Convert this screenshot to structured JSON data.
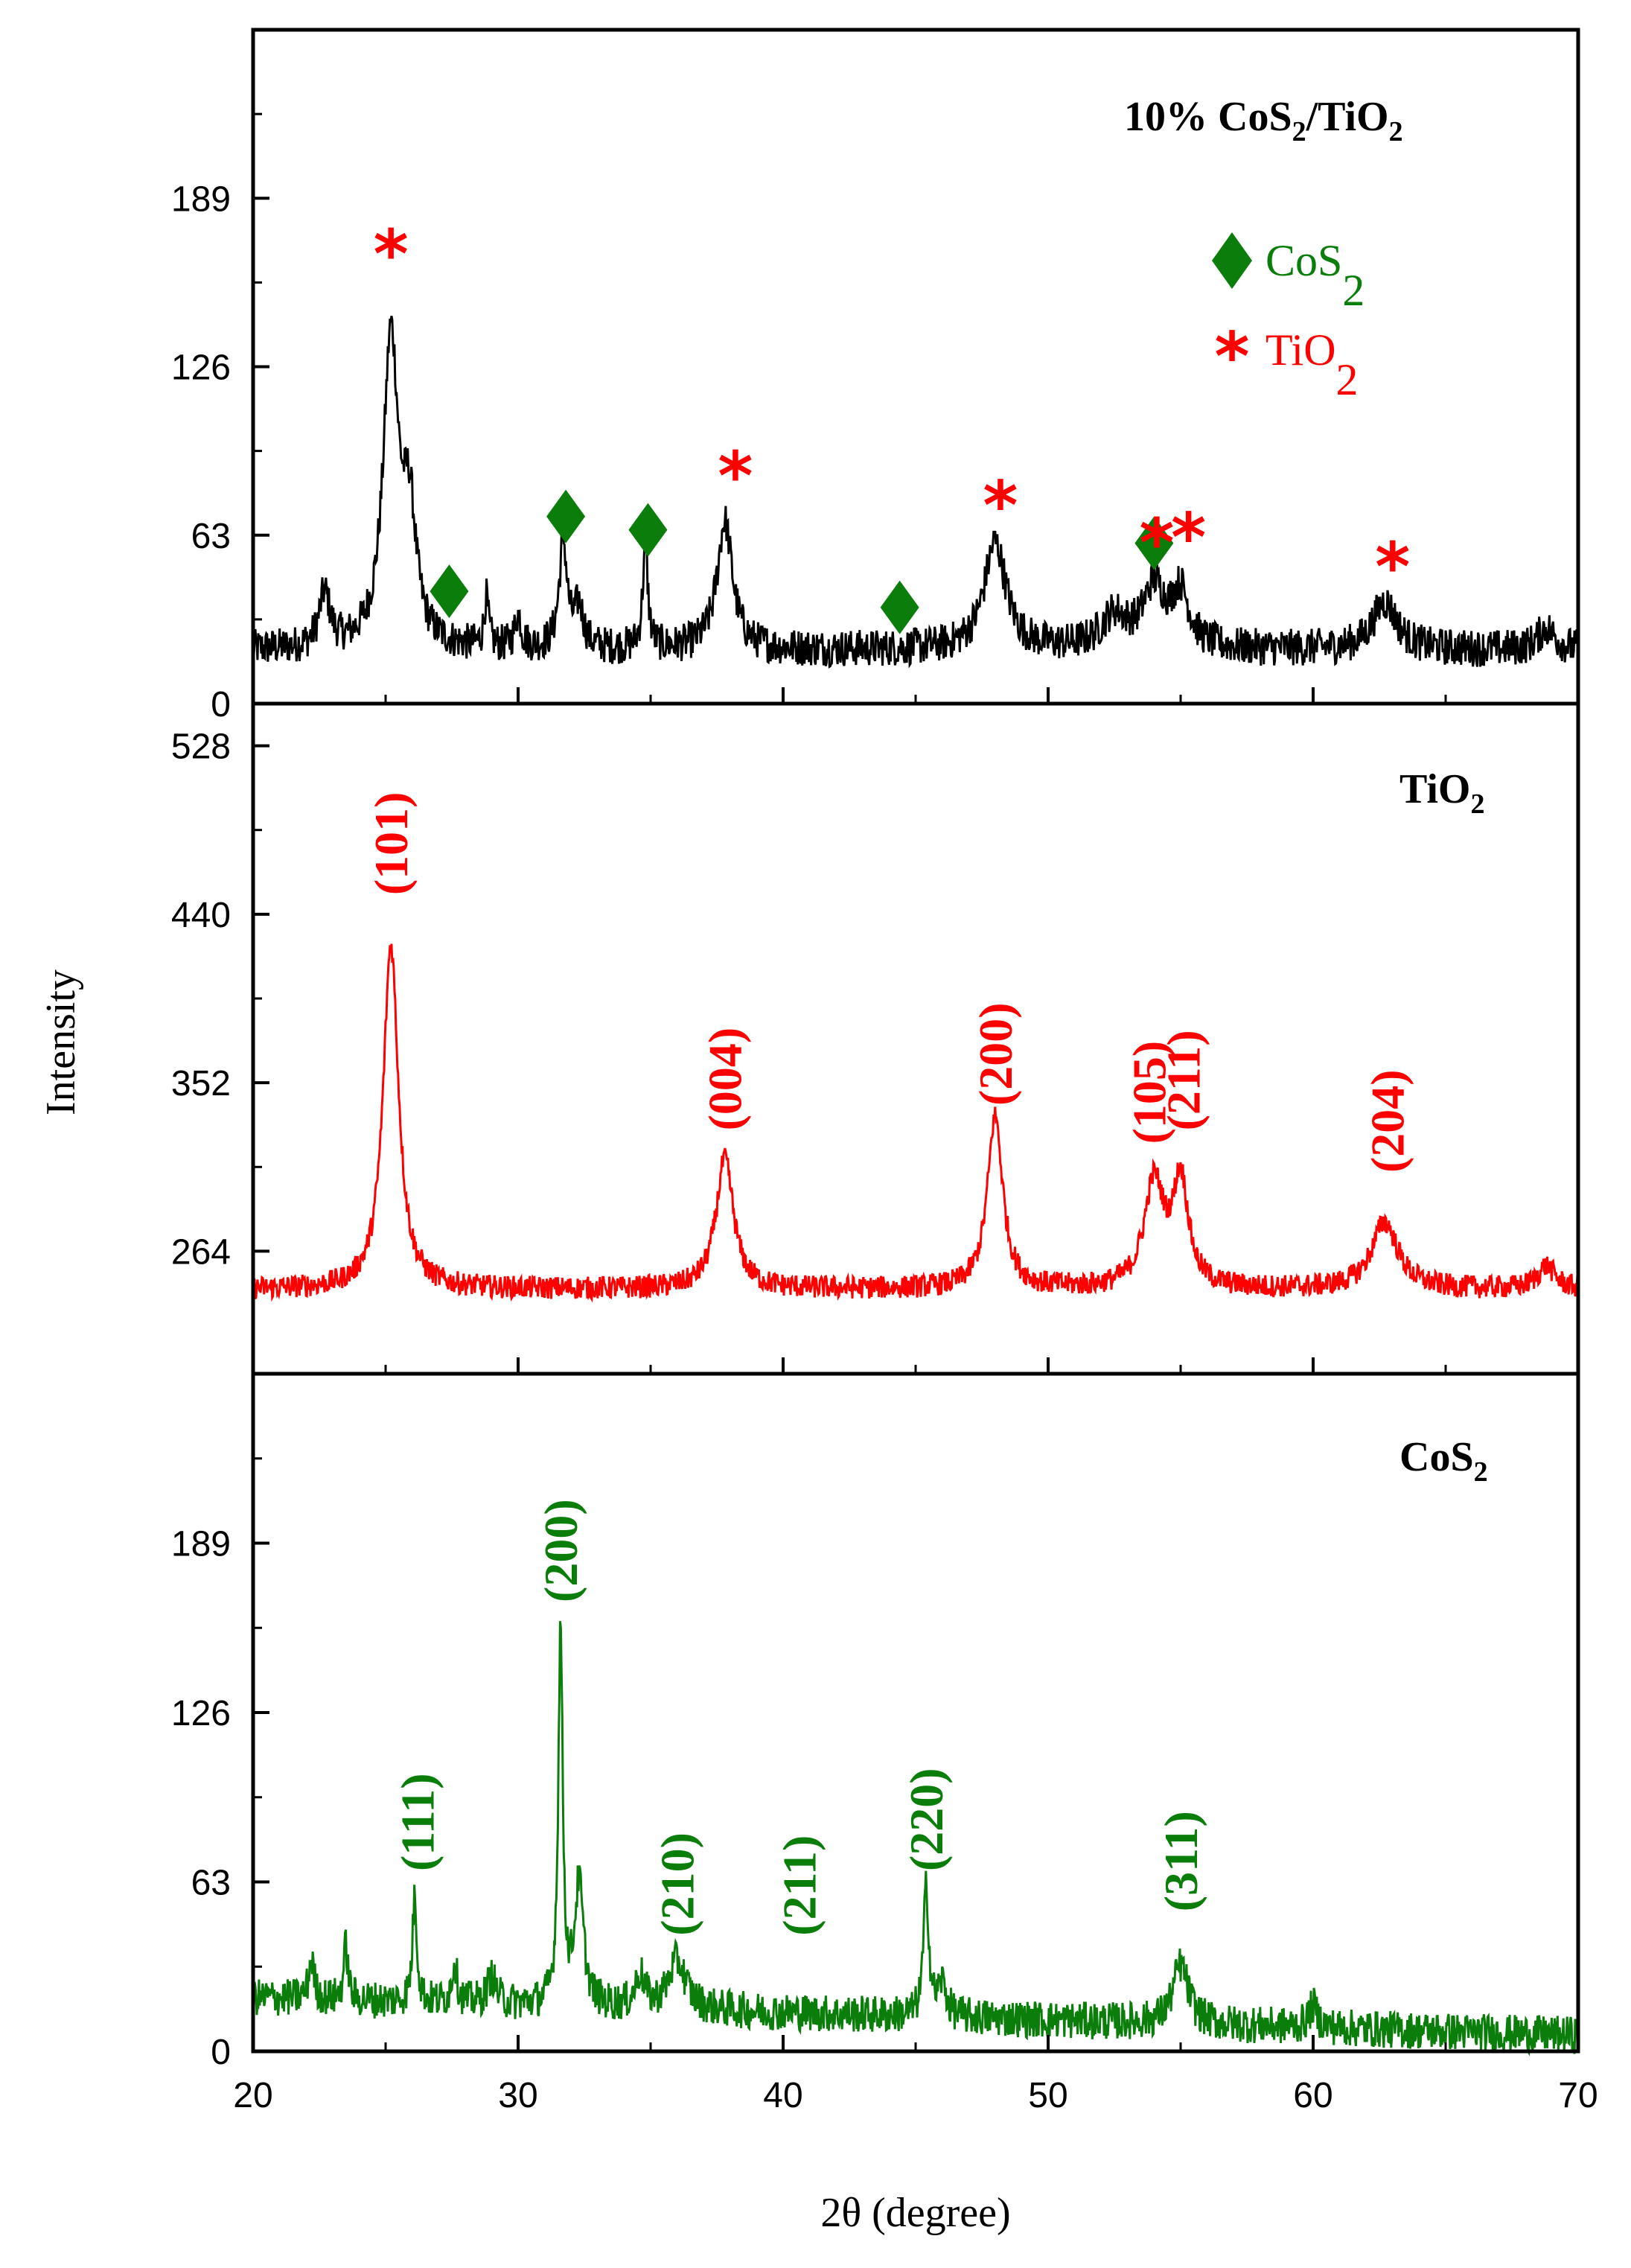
{
  "chart_data": {
    "type": "line",
    "xlabel": "2θ (degree)",
    "ylabel": "Intensity",
    "xlim": [
      20,
      70
    ],
    "xticks": [
      20,
      30,
      40,
      50,
      60,
      70
    ],
    "colors": {
      "composite": "#000000",
      "tio2": "#ff0000",
      "cos2": "#0a7d0a",
      "marker_green": "#0a7d0a",
      "marker_red": "#ff0000"
    },
    "panels": [
      {
        "id": "composite",
        "label_main": "10% CoS",
        "label_sub": "2",
        "label_main2": "/TiO",
        "label_sub2": "2",
        "ylim": [
          0,
          252
        ],
        "yticks": [
          0,
          63,
          126,
          189
        ],
        "baseline": 20,
        "noise": 7,
        "peaks": [
          {
            "x": 22.7,
            "h": 20,
            "w": 0.25
          },
          {
            "x": 25.2,
            "h": 115,
            "w": 0.35
          },
          {
            "x": 25.9,
            "h": 45,
            "w": 0.3
          },
          {
            "x": 28.8,
            "h": 18,
            "w": 0.1
          },
          {
            "x": 30.0,
            "h": 12,
            "w": 0.15
          },
          {
            "x": 31.7,
            "h": 40,
            "w": 0.18
          },
          {
            "x": 32.3,
            "h": 15,
            "w": 0.2
          },
          {
            "x": 34.8,
            "h": 38,
            "w": 0.12
          },
          {
            "x": 37.8,
            "h": 48,
            "w": 0.35
          },
          {
            "x": 48.0,
            "h": 40,
            "w": 0.5
          },
          {
            "x": 52.5,
            "h": 12,
            "w": 0.6
          },
          {
            "x": 54.0,
            "h": 22,
            "w": 0.5
          },
          {
            "x": 55.0,
            "h": 20,
            "w": 0.4
          },
          {
            "x": 62.7,
            "h": 18,
            "w": 0.55
          },
          {
            "x": 68.8,
            "h": 8,
            "w": 0.4
          }
        ],
        "markers_cos2": [
          {
            "x": 27.4,
            "y": 42
          },
          {
            "x": 31.8,
            "y": 70
          },
          {
            "x": 34.9,
            "y": 65
          },
          {
            "x": 44.4,
            "y": 36
          },
          {
            "x": 54.0,
            "y": 60
          }
        ],
        "markers_tio2": [
          {
            "x": 25.2,
            "y": 170
          },
          {
            "x": 38.2,
            "y": 87
          },
          {
            "x": 48.2,
            "y": 76
          },
          {
            "x": 54.1,
            "y": 62
          },
          {
            "x": 55.3,
            "y": 64
          },
          {
            "x": 63.0,
            "y": 53
          }
        ],
        "legend": [
          {
            "symbol": "diamond",
            "text": "CoS",
            "sub": "2"
          },
          {
            "symbol": "star",
            "text": "TiO",
            "sub": "2"
          }
        ]
      },
      {
        "id": "tio2",
        "label_main": "TiO",
        "label_sub": "2",
        "ylim": [
          200,
          550
        ],
        "yticks": [
          264,
          352,
          440,
          528
        ],
        "baseline": 244,
        "noise": 6,
        "peaks": [
          {
            "x": 25.2,
            "h": 180,
            "w": 0.35
          },
          {
            "x": 37.8,
            "h": 68,
            "w": 0.4
          },
          {
            "x": 48.0,
            "h": 90,
            "w": 0.35
          },
          {
            "x": 54.0,
            "h": 55,
            "w": 0.45
          },
          {
            "x": 55.0,
            "h": 55,
            "w": 0.35
          },
          {
            "x": 62.7,
            "h": 35,
            "w": 0.6
          },
          {
            "x": 68.8,
            "h": 12,
            "w": 0.4
          }
        ],
        "peak_labels": [
          {
            "x": 25.2,
            "y": 450,
            "text": "(101)"
          },
          {
            "x": 37.8,
            "y": 327,
            "text": "(004)"
          },
          {
            "x": 48.0,
            "y": 340,
            "text": "(200)"
          },
          {
            "x": 53.8,
            "y": 320,
            "text": "(105)"
          },
          {
            "x": 55.1,
            "y": 327,
            "text": "(211)"
          },
          {
            "x": 62.8,
            "y": 305,
            "text": "(204)"
          }
        ]
      },
      {
        "id": "cos2",
        "label_main": "CoS",
        "label_sub": "2",
        "ylim": [
          0,
          252
        ],
        "yticks": [
          0,
          63,
          126,
          189
        ],
        "baseline": 20,
        "noise": 7,
        "peaks": [
          {
            "x": 22.2,
            "h": 15,
            "w": 0.12
          },
          {
            "x": 23.5,
            "h": 20,
            "w": 0.1
          },
          {
            "x": 26.1,
            "h": 40,
            "w": 0.1
          },
          {
            "x": 27.6,
            "h": 15,
            "w": 0.12
          },
          {
            "x": 29.0,
            "h": 10,
            "w": 0.2
          },
          {
            "x": 31.6,
            "h": 140,
            "w": 0.1
          },
          {
            "x": 32.3,
            "h": 45,
            "w": 0.2
          },
          {
            "x": 34.6,
            "h": 12,
            "w": 0.2
          },
          {
            "x": 36.0,
            "h": 18,
            "w": 0.4
          },
          {
            "x": 45.4,
            "h": 48,
            "w": 0.12
          },
          {
            "x": 46.0,
            "h": 12,
            "w": 0.2
          },
          {
            "x": 55.0,
            "h": 22,
            "w": 0.35
          },
          {
            "x": 60.0,
            "h": 8,
            "w": 0.2
          }
        ],
        "slope": -6e-05,
        "peak_labels": [
          {
            "x": 26.2,
            "y": 67,
            "text": "(111)"
          },
          {
            "x": 31.6,
            "y": 167,
            "text": "(200)"
          },
          {
            "x": 36.0,
            "y": 43,
            "text": "(210)"
          },
          {
            "x": 40.6,
            "y": 43,
            "text": "(211)"
          },
          {
            "x": 45.4,
            "y": 67,
            "text": "(220)"
          },
          {
            "x": 55.0,
            "y": 52,
            "text": "(311)"
          }
        ]
      }
    ]
  }
}
